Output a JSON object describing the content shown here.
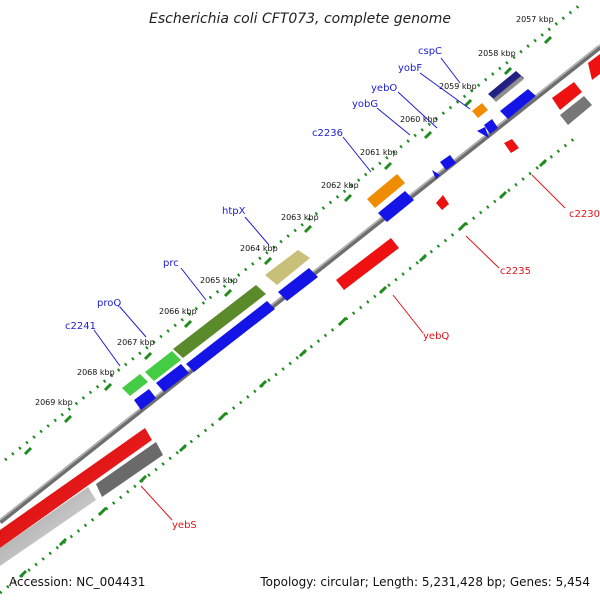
{
  "title": "Escherichia coli CFT073, complete genome",
  "footer": {
    "accession": "Accession: NC_004431",
    "summary": "Topology: circular; Length: 5,231,428 bp; Genes: 5,454"
  },
  "colors": {
    "forward_label": "#1c1cd6",
    "reverse_label": "#e0141a",
    "backbone": "#808080",
    "dots": "#1e8c1e"
  },
  "scale": {
    "unit": "kbp",
    "ticks": [
      "2057 kbp",
      "2058 kbp",
      "2059 kbp",
      "2060 kbp",
      "2061 kbp",
      "2062 kbp",
      "2063 kbp",
      "2064 kbp",
      "2065 kbp",
      "2066 kbp",
      "2067 kbp",
      "2068 kbp",
      "2069 kbp"
    ]
  },
  "genes_forward": [
    {
      "label": "cspC",
      "color": "navy-gradient"
    },
    {
      "label": "yobF",
      "color": "orange"
    },
    {
      "label": "yebO",
      "color": "blue"
    },
    {
      "label": "yobG",
      "color": "blue"
    },
    {
      "label": "c2236",
      "color": "orange"
    },
    {
      "label": "htpX",
      "color": "khaki"
    },
    {
      "label": "prc",
      "color": "olive"
    },
    {
      "label": "proQ",
      "color": "green"
    },
    {
      "label": "c2241",
      "color": "green"
    }
  ],
  "genes_reverse": [
    {
      "label": "c2230",
      "color": "red"
    },
    {
      "label": "c2235",
      "color": "red"
    },
    {
      "label": "yebQ",
      "color": "red"
    },
    {
      "label": "yebS",
      "color": "red"
    }
  ]
}
